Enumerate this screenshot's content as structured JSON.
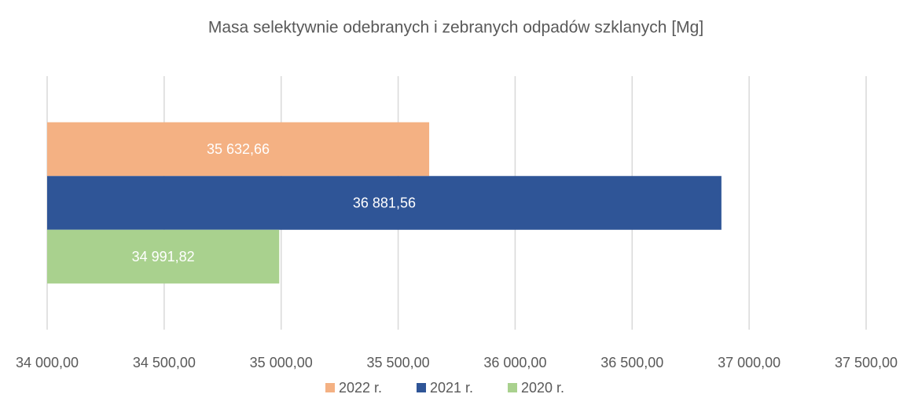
{
  "chart_data": {
    "type": "bar",
    "orientation": "horizontal",
    "title": "Masa selektywnie odebranych i zebranych odpadów szklanych [Mg]",
    "categories": [
      null
    ],
    "series": [
      {
        "name": "2022 r.",
        "color": "#f4b183",
        "values": [
          35632.66
        ],
        "value_labels": [
          "35 632,66"
        ]
      },
      {
        "name": "2021 r.",
        "color": "#2f5597",
        "values": [
          36881.56
        ],
        "value_labels": [
          "36 881,56"
        ]
      },
      {
        "name": "2020 r.",
        "color": "#a9d18e",
        "values": [
          34991.82
        ],
        "value_labels": [
          "34 991,82"
        ]
      }
    ],
    "xlim": [
      34000,
      37500
    ],
    "xticks": [
      {
        "value": 34000,
        "label": "34 000,00"
      },
      {
        "value": 34500,
        "label": "34 500,00"
      },
      {
        "value": 35000,
        "label": "35 000,00"
      },
      {
        "value": 35500,
        "label": "35 500,00"
      },
      {
        "value": 36000,
        "label": "36 000,00"
      },
      {
        "value": 36500,
        "label": "36 500,00"
      },
      {
        "value": 37000,
        "label": "37 000,00"
      },
      {
        "value": 37500,
        "label": "37 500,00"
      }
    ],
    "grid": true,
    "legend": "bottom"
  }
}
